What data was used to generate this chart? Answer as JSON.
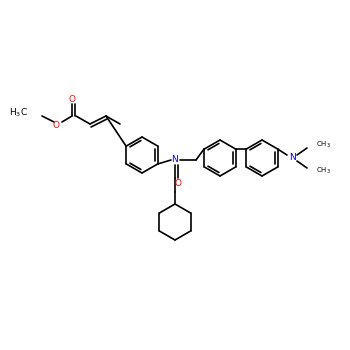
{
  "background_color": "#ffffff",
  "bond_color": "#000000",
  "bond_width": 1.2,
  "atom_colors": {
    "O": "#ff0000",
    "N": "#0000cc",
    "C": "#000000"
  },
  "font_size_main": 6.5,
  "font_size_sub": 5.0
}
